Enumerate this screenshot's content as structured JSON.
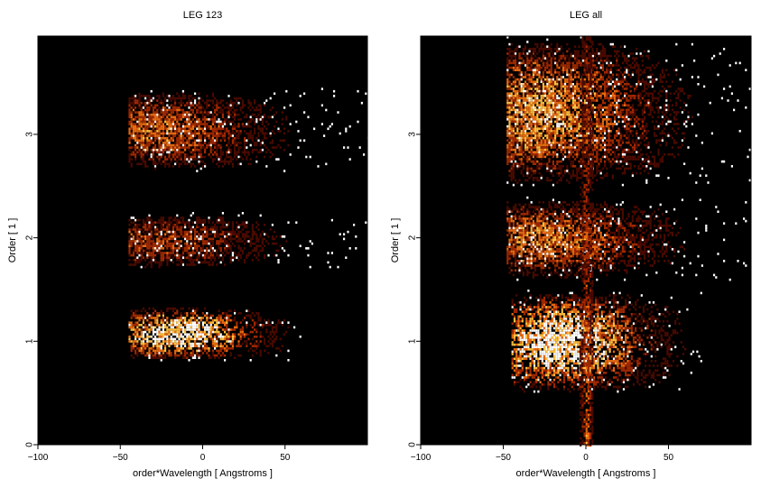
{
  "chart_data": [
    {
      "type": "heatmap",
      "title": "LEG 123",
      "xlabel": "order*Wavelength [ Angstroms ]",
      "ylabel": "Order [ 1 ]",
      "xlim": [
        -100,
        100
      ],
      "ylim": [
        0,
        3.95
      ],
      "xticks": [
        -100,
        -50,
        0,
        50
      ],
      "xtick_labels": [
        "−100",
        "−50",
        "0",
        "50"
      ],
      "yticks": [
        0,
        1,
        2,
        3
      ],
      "ytick_labels": [
        "0",
        "1",
        "2",
        "3"
      ],
      "colormap": [
        "#000000",
        "#4a0a00",
        "#a02800",
        "#e86a10",
        "#ffc040",
        "#ffffff"
      ],
      "grid": false,
      "blobs": [
        {
          "order": 1,
          "x_range": [
            -45,
            60
          ],
          "y_range": [
            0.82,
            1.35
          ],
          "peak_x": -15,
          "peak": 1.0,
          "note": "bright band"
        },
        {
          "order": 2,
          "x_range": [
            -45,
            100
          ],
          "y_range": [
            1.7,
            2.25
          ],
          "peak_x": -28,
          "peak": 0.45
        },
        {
          "order": 3,
          "x_range": [
            -45,
            100
          ],
          "y_range": [
            2.65,
            3.45
          ],
          "peak_x": -28,
          "peak": 0.55
        }
      ]
    },
    {
      "type": "heatmap",
      "title": "LEG all",
      "xlabel": "order*Wavelength [ Angstroms ]",
      "ylabel": "Order [ 1 ]",
      "xlim": [
        -100,
        100
      ],
      "ylim": [
        0,
        3.95
      ],
      "xticks": [
        -100,
        -50,
        0,
        50
      ],
      "xtick_labels": [
        "−100",
        "−50",
        "0",
        "50"
      ],
      "yticks": [
        0,
        1,
        2,
        3
      ],
      "ytick_labels": [
        "0",
        "1",
        "2",
        "3"
      ],
      "colormap": [
        "#000000",
        "#4a0a00",
        "#a02800",
        "#e86a10",
        "#ffc040",
        "#ffffff"
      ],
      "grid": false,
      "blobs": [
        {
          "order": 1,
          "x_range": [
            -45,
            70
          ],
          "y_range": [
            0.5,
            1.5
          ],
          "peak_x": -15,
          "peak": 1.0
        },
        {
          "order": 2,
          "x_range": [
            -48,
            100
          ],
          "y_range": [
            1.6,
            2.4
          ],
          "peak_x": -25,
          "peak": 0.6
        },
        {
          "order": 3,
          "x_range": [
            -48,
            100
          ],
          "y_range": [
            2.5,
            3.95
          ],
          "peak_x": -25,
          "peak": 0.7
        },
        {
          "order": 0,
          "x_range": [
            -5,
            5
          ],
          "y_range": [
            0,
            3.95
          ],
          "peak_x": 0,
          "peak": 0.8,
          "note": "zeroth-order spike"
        }
      ]
    }
  ]
}
